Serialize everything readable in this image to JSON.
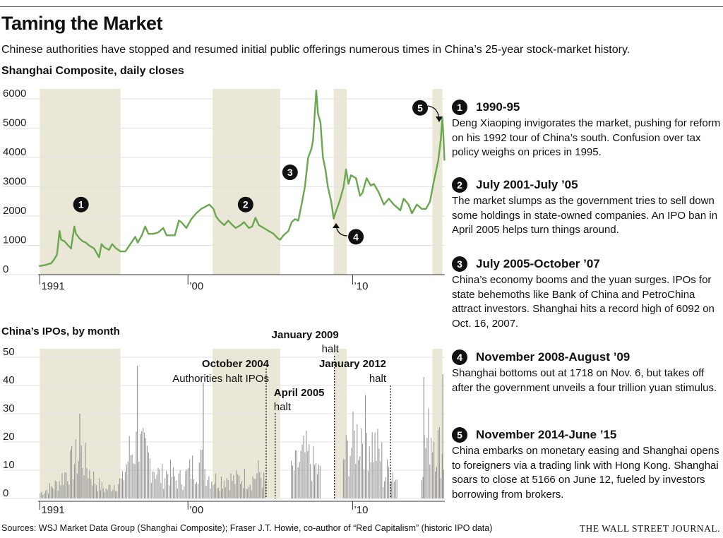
{
  "header": {
    "title": "Taming the Market",
    "subtitle": "Chinese authorities have stopped and resumed initial public offerings numerous times in China’s 25-year stock-market history."
  },
  "chart_data": [
    {
      "type": "line",
      "title": "Shanghai Composite, daily closes",
      "ylim": [
        0,
        6000
      ],
      "yticks": [
        0,
        1000,
        2000,
        3000,
        4000,
        5000,
        6000
      ],
      "x_range": [
        1990.9,
        2015.6
      ],
      "xtick_labels": [
        {
          "x": 1991,
          "label": "1991"
        },
        {
          "x": 2000,
          "label": "’00"
        },
        {
          "x": 2010,
          "label": "’10"
        }
      ],
      "grid": true,
      "series": [
        {
          "color": "#6aa84f",
          "points": [
            [
              1990.95,
              100
            ],
            [
              1991.3,
              130
            ],
            [
              1991.7,
              200
            ],
            [
              1991.9,
              350
            ],
            [
              1992.05,
              500
            ],
            [
              1992.2,
              1300
            ],
            [
              1992.3,
              1000
            ],
            [
              1992.5,
              950
            ],
            [
              1992.65,
              850
            ],
            [
              1992.9,
              700
            ],
            [
              1993.1,
              1450
            ],
            [
              1993.2,
              1200
            ],
            [
              1993.4,
              1050
            ],
            [
              1993.6,
              950
            ],
            [
              1993.8,
              900
            ],
            [
              1994.0,
              800
            ],
            [
              1994.3,
              700
            ],
            [
              1994.6,
              400
            ],
            [
              1994.75,
              850
            ],
            [
              1994.9,
              750
            ],
            [
              1995.2,
              650
            ],
            [
              1995.4,
              850
            ],
            [
              1995.6,
              720
            ],
            [
              1995.9,
              600
            ],
            [
              1996.2,
              600
            ],
            [
              1996.5,
              850
            ],
            [
              1996.8,
              1100
            ],
            [
              1996.95,
              900
            ],
            [
              1997.2,
              1150
            ],
            [
              1997.4,
              1450
            ],
            [
              1997.6,
              1200
            ],
            [
              1997.9,
              1200
            ],
            [
              1998.2,
              1250
            ],
            [
              1998.5,
              1400
            ],
            [
              1998.7,
              1150
            ],
            [
              1998.9,
              1150
            ],
            [
              1999.2,
              1150
            ],
            [
              1999.45,
              1650
            ],
            [
              1999.6,
              1600
            ],
            [
              1999.9,
              1400
            ],
            [
              2000.2,
              1700
            ],
            [
              2000.5,
              1900
            ],
            [
              2000.8,
              2050
            ],
            [
              2001.3,
              2200
            ],
            [
              2001.55,
              2050
            ],
            [
              2001.7,
              1800
            ],
            [
              2001.9,
              1650
            ],
            [
              2002.2,
              1500
            ],
            [
              2002.45,
              1650
            ],
            [
              2002.7,
              1500
            ],
            [
              2002.9,
              1400
            ],
            [
              2003.2,
              1500
            ],
            [
              2003.4,
              1600
            ],
            [
              2003.7,
              1400
            ],
            [
              2003.9,
              1450
            ],
            [
              2004.1,
              1750
            ],
            [
              2004.3,
              1500
            ],
            [
              2004.6,
              1400
            ],
            [
              2004.9,
              1300
            ],
            [
              2005.2,
              1200
            ],
            [
              2005.45,
              1050
            ],
            [
              2005.6,
              1000
            ],
            [
              2005.8,
              1150
            ],
            [
              2006.1,
              1300
            ],
            [
              2006.3,
              1600
            ],
            [
              2006.5,
              1700
            ],
            [
              2006.7,
              1650
            ],
            [
              2006.9,
              2200
            ],
            [
              2007.1,
              2800
            ],
            [
              2007.3,
              3800
            ],
            [
              2007.5,
              4100
            ],
            [
              2007.6,
              4400
            ],
            [
              2007.79,
              6092
            ],
            [
              2007.9,
              5300
            ],
            [
              2008.05,
              5000
            ],
            [
              2008.2,
              3800
            ],
            [
              2008.35,
              3400
            ],
            [
              2008.5,
              2800
            ],
            [
              2008.7,
              2300
            ],
            [
              2008.85,
              1718
            ],
            [
              2008.95,
              1900
            ],
            [
              2009.2,
              2300
            ],
            [
              2009.45,
              2800
            ],
            [
              2009.6,
              3400
            ],
            [
              2009.75,
              2900
            ],
            [
              2009.9,
              3200
            ],
            [
              2010.2,
              3100
            ],
            [
              2010.45,
              2500
            ],
            [
              2010.6,
              2600
            ],
            [
              2010.85,
              3100
            ],
            [
              2011.1,
              2850
            ],
            [
              2011.3,
              2900
            ],
            [
              2011.6,
              2600
            ],
            [
              2011.9,
              2200
            ],
            [
              2012.2,
              2400
            ],
            [
              2012.5,
              2200
            ],
            [
              2012.9,
              2000
            ],
            [
              2013.1,
              2400
            ],
            [
              2013.4,
              2200
            ],
            [
              2013.6,
              1900
            ],
            [
              2013.9,
              2200
            ],
            [
              2014.2,
              2050
            ],
            [
              2014.45,
              2050
            ],
            [
              2014.7,
              2300
            ],
            [
              2014.9,
              2900
            ],
            [
              2015.05,
              3300
            ],
            [
              2015.2,
              3700
            ],
            [
              2015.35,
              4400
            ],
            [
              2015.45,
              5166
            ],
            [
              2015.52,
              4500
            ],
            [
              2015.58,
              3700
            ]
          ]
        }
      ],
      "shaded_periods": [
        [
          1991.0,
          1995.9
        ],
        [
          2001.5,
          2005.6
        ],
        [
          2008.85,
          2009.65
        ],
        [
          2014.85,
          2015.45
        ]
      ],
      "markers": [
        {
          "label": "1",
          "x": 1993.5,
          "y": 2200
        },
        {
          "label": "2",
          "x": 2003.5,
          "y": 2200
        },
        {
          "label": "3",
          "x": 2006.2,
          "y": 3300
        },
        {
          "label": "4",
          "x": 2010.2,
          "y": 1100
        },
        {
          "label": "5",
          "x": 2014.1,
          "y": 5500
        }
      ]
    },
    {
      "type": "bar",
      "title": "China’s IPOs, by month",
      "ylim": [
        0,
        50
      ],
      "yticks": [
        0,
        10,
        20,
        30,
        40,
        50
      ],
      "x_range": [
        1990.9,
        2015.6
      ],
      "xtick_labels": [
        {
          "x": 1991,
          "label": "1991"
        },
        {
          "x": 2000,
          "label": "’00"
        },
        {
          "x": 2010,
          "label": "’10"
        }
      ],
      "bar_color": "#9a9a9a",
      "envelope": [
        [
          1991.0,
          3
        ],
        [
          1992.0,
          8
        ],
        [
          1992.6,
          15
        ],
        [
          1993.0,
          20
        ],
        [
          1993.5,
          25
        ],
        [
          1994.0,
          15
        ],
        [
          1994.5,
          8
        ],
        [
          1995.0,
          5
        ],
        [
          1995.5,
          8
        ],
        [
          1996.0,
          10
        ],
        [
          1996.4,
          25
        ],
        [
          1996.9,
          30
        ],
        [
          1997.3,
          25
        ],
        [
          1997.8,
          20
        ],
        [
          1998.3,
          12
        ],
        [
          1998.8,
          15
        ],
        [
          1999.3,
          10
        ],
        [
          1999.8,
          12
        ],
        [
          2000.3,
          18
        ],
        [
          2000.8,
          20
        ],
        [
          2001.3,
          12
        ],
        [
          2001.8,
          10
        ],
        [
          2002.3,
          12
        ],
        [
          2002.8,
          10
        ],
        [
          2003.3,
          12
        ],
        [
          2003.8,
          10
        ],
        [
          2004.3,
          15
        ],
        [
          2004.7,
          8
        ]
      ],
      "bursts": [
        {
          "from": 2006.2,
          "to": 2008.0,
          "max": 25
        },
        {
          "from": 2009.4,
          "to": 2011.8,
          "max": 40
        },
        {
          "from": 2011.8,
          "to": 2012.7,
          "max": 18
        },
        {
          "from": 2014.1,
          "to": 2015.5,
          "max": 40
        }
      ],
      "spikes": [
        [
          1993.4,
          30
        ],
        [
          1996.9,
          47
        ],
        [
          2000.9,
          41
        ],
        [
          2014.3,
          43
        ],
        [
          2015.45,
          44
        ]
      ],
      "halts": [
        {
          "x": 2004.75,
          "title": "October 2004",
          "text": "Authorities halt IPOs"
        },
        {
          "x": 2005.3,
          "title": "April 2005",
          "text": "halt"
        },
        {
          "x": 2008.9,
          "title": "January 2009",
          "text": "halt"
        },
        {
          "x": 2012.3,
          "title": "January 2012",
          "text": "halt"
        }
      ]
    }
  ],
  "events": [
    {
      "num": "1",
      "title": "1990-95",
      "text": "Deng Xiaoping invigorates the market, pushing for reform on his 1992 tour of China’s south. Confusion over tax policy weighs on prices in 1995."
    },
    {
      "num": "2",
      "title": "July 2001-July ’05",
      "text": "The market slumps as the government tries to sell down some holdings in state-owned companies. An IPO ban in April 2005 helps turn things around."
    },
    {
      "num": "3",
      "title": "July 2005-October ’07",
      "text": "China’s economy booms and the yuan surges. IPOs for state behemoths like Bank of China and PetroChina attract investors. Shanghai hits a record high of 6092 on Oct. 16, 2007."
    },
    {
      "num": "4",
      "title": "November 2008-August ’09",
      "text": "Shanghai bottoms out at 1718 on Nov. 6, but takes off after the government unveils a four trillion  yuan stimulus."
    },
    {
      "num": "5",
      "title": "November 2014-June ’15",
      "text": "China embarks on monetary easing and Shanghai opens to foreigners via a trading link with Hong Kong. Shanghai soars to close at 5166 on June 12, fueled by investors borrowing from brokers."
    }
  ],
  "footer": {
    "sources": "Sources: WSJ Market Data Group (Shanghai Composite); Fraser J.T. Howie, co-author of “Red Capitalism” (historic IPO data)",
    "brand": "THE WALL STREET JOURNAL."
  }
}
